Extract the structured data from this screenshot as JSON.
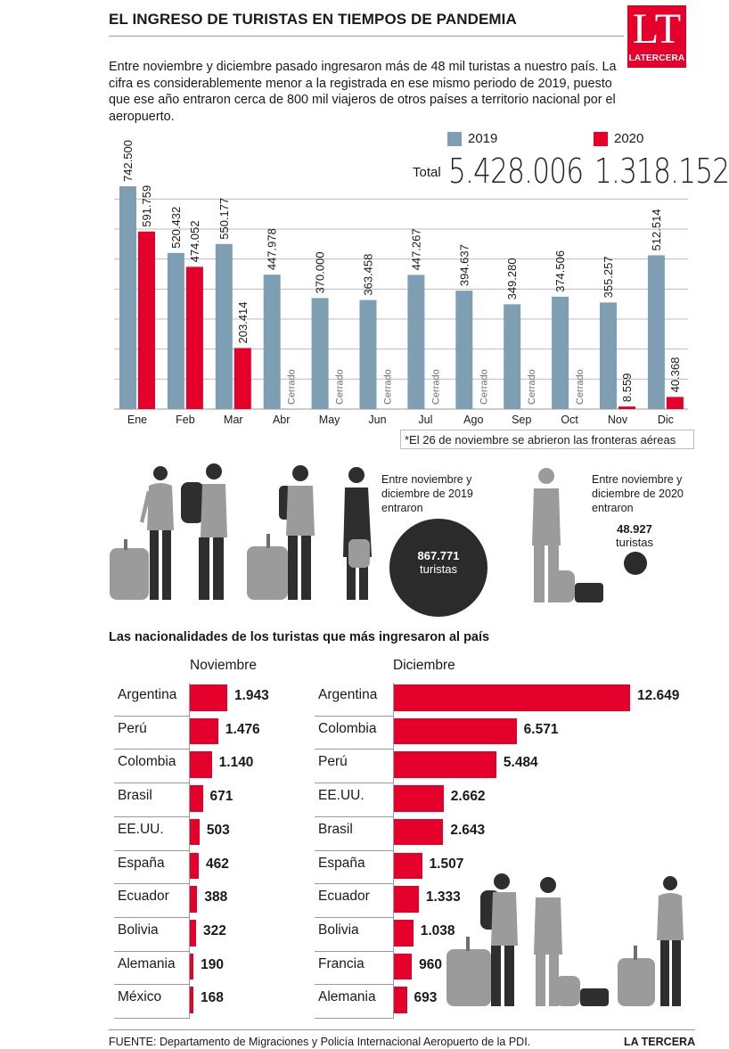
{
  "header": {
    "title": "EL INGRESO DE TURISTAS EN TIEMPOS DE PANDEMIA",
    "logo_big": "LT",
    "logo_small": "LATERCERA",
    "intro": "Entre noviembre y diciembre pasado ingresaron más de 48 mil turistas a nuestro país. La cifra es considerablemente menor a la registrada en ese mismo periodo de 2019, puesto que ese año entraron cerca de 800 mil viajeros de otros países a territorio nacional por el aeropuerto."
  },
  "colors": {
    "series_2019": "#7e9fb3",
    "series_2020": "#e5002b",
    "axis": "#9a9a9a",
    "text": "#1a1a1a"
  },
  "chart_data": [
    {
      "type": "bar",
      "categories": [
        "Ene",
        "Feb",
        "Mar",
        "Abr",
        "May",
        "Jun",
        "Jul",
        "Ago",
        "Sep",
        "Oct",
        "Nov",
        "Dic"
      ],
      "series": [
        {
          "name": "2019",
          "values": [
            742500,
            520432,
            550177,
            447978,
            370000,
            363458,
            447267,
            394637,
            349280,
            374506,
            355257,
            512514
          ],
          "labels": [
            "742.500",
            "520.432",
            "550.177",
            "447.978",
            "370.000",
            "363.458",
            "447.267",
            "394.637",
            "349.280",
            "374.506",
            "355.257",
            "512.514"
          ]
        },
        {
          "name": "2020",
          "values": [
            591759,
            474052,
            203414,
            0,
            0,
            0,
            0,
            0,
            0,
            0,
            8559,
            40368
          ],
          "labels": [
            "591.759",
            "474.052",
            "203.414",
            "Cerrado",
            "Cerrado",
            "Cerrado",
            "Cerrado",
            "Cerrado",
            "Cerrado",
            "Cerrado",
            "8.559",
            "40.368"
          ]
        }
      ],
      "totals_label": "Total",
      "totals": [
        {
          "name": "2019",
          "value": "5.428.006"
        },
        {
          "name": "2020",
          "value": "1.318.152"
        }
      ],
      "ylim": [
        0,
        750000
      ],
      "grid": "horizontal",
      "legend": "top-right",
      "footnote": "*El 26 de noviembre se abrieron las fronteras aéreas"
    },
    {
      "type": "bar",
      "orientation": "horizontal",
      "title": "Noviembre",
      "categories": [
        "Argentina",
        "Perú",
        "Colombia",
        "Brasil",
        "EE.UU.",
        "España",
        "Ecuador",
        "Bolivia",
        "Alemania",
        "México"
      ],
      "values": [
        1943,
        1476,
        1140,
        671,
        503,
        462,
        388,
        322,
        190,
        168
      ],
      "labels": [
        "1.943",
        "1.476",
        "1.140",
        "671",
        "503",
        "462",
        "388",
        "322",
        "190",
        "168"
      ]
    },
    {
      "type": "bar",
      "orientation": "horizontal",
      "title": "Diciembre",
      "categories": [
        "Argentina",
        "Colombia",
        "Perú",
        "EE.UU.",
        "Brasil",
        "España",
        "Ecuador",
        "Bolivia",
        "Francia",
        "Alemania"
      ],
      "values": [
        12649,
        6571,
        5484,
        2662,
        2643,
        1507,
        1333,
        1038,
        960,
        693
      ],
      "labels": [
        "12.649",
        "6.571",
        "5.484",
        "2.662",
        "2.643",
        "1.507",
        "1.333",
        "1.038",
        "960",
        "693"
      ]
    }
  ],
  "summary": {
    "y2019_text": "Entre noviembre y diciembre de 2019 entraron",
    "y2019_number": "867.771",
    "y2019_unit": "turistas",
    "y2020_text": "Entre noviembre y diciembre de 2020 entraron",
    "y2020_number": "48.927",
    "y2020_unit": "turistas"
  },
  "nationalities": {
    "title": "Las nacionalidades de los turistas que más ingresaron al país"
  },
  "footer": {
    "source": "FUENTE: Departamento de Migraciones y Policía Internacional Aeropuerto de la PDI.",
    "brand": "LA TERCERA"
  }
}
